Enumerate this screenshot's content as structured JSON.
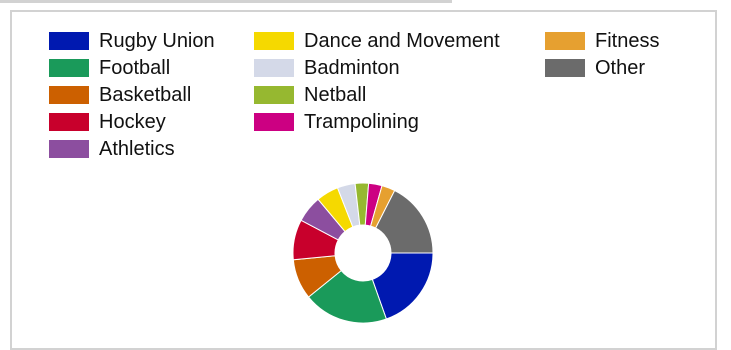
{
  "chart_data": {
    "type": "pie",
    "variant": "donut",
    "title": "",
    "legend_placement": "top",
    "categories": [
      "Rugby Union",
      "Football",
      "Basketball",
      "Hockey",
      "Athletics",
      "Dance and Movement",
      "Badminton",
      "Netball",
      "Trampolining",
      "Fitness",
      "Other"
    ],
    "values": [
      19,
      19,
      9,
      9,
      6,
      5,
      4,
      3,
      3,
      3,
      17
    ],
    "colors": [
      "#0019b0",
      "#1a9a5a",
      "#cc6000",
      "#c8002c",
      "#8c4e9f",
      "#f5d900",
      "#d4d9e8",
      "#96b830",
      "#cc0082",
      "#e6a030",
      "#6b6b6b"
    ]
  }
}
